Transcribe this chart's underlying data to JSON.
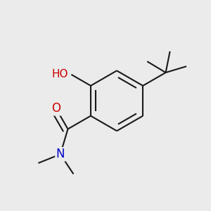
{
  "background_color": "#ebebeb",
  "bond_color": "#1a1a1a",
  "oxygen_color": "#cc0000",
  "nitrogen_color": "#0000cc",
  "bond_width": 1.5,
  "dbo": 0.055,
  "figsize": [
    3.0,
    3.0
  ],
  "dpi": 100,
  "xlim": [
    -0.5,
    1.3
  ],
  "ylim": [
    -1.1,
    1.1
  ]
}
